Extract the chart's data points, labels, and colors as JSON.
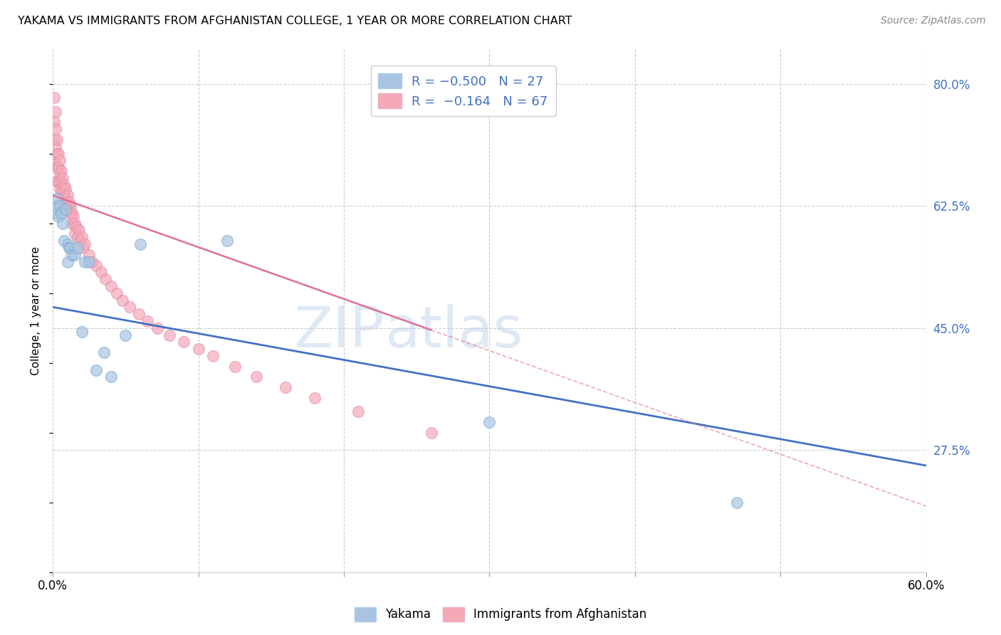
{
  "title": "YAKAMA VS IMMIGRANTS FROM AFGHANISTAN COLLEGE, 1 YEAR OR MORE CORRELATION CHART",
  "source": "Source: ZipAtlas.com",
  "ylabel": "College, 1 year or more",
  "xlim": [
    0.0,
    0.6
  ],
  "ylim": [
    0.1,
    0.85
  ],
  "xtick_positions": [
    0.0,
    0.1,
    0.2,
    0.3,
    0.4,
    0.5,
    0.6
  ],
  "xticklabels": [
    "0.0%",
    "",
    "",
    "",
    "",
    "",
    "60.0%"
  ],
  "yticks_right": [
    0.275,
    0.45,
    0.625,
    0.8
  ],
  "ytick_right_labels": [
    "27.5%",
    "45.0%",
    "62.5%",
    "80.0%"
  ],
  "grid_color": "#cccccc",
  "background_color": "#ffffff",
  "watermark_zip": "ZIP",
  "watermark_atlas": "atlas",
  "blue_color": "#a8c4e0",
  "pink_color": "#f4a8b8",
  "line_blue_color": "#4472c4",
  "line_pink_color": "#e07090",
  "legend_text_color": "#4472c4",
  "right_axis_color": "#4472c4",
  "yakama_x": [
    0.002,
    0.003,
    0.003,
    0.004,
    0.005,
    0.006,
    0.007,
    0.008,
    0.009,
    0.01,
    0.01,
    0.011,
    0.012,
    0.013,
    0.015,
    0.017,
    0.02,
    0.022,
    0.025,
    0.03,
    0.035,
    0.04,
    0.05,
    0.06,
    0.12,
    0.3,
    0.47
  ],
  "yakama_y": [
    0.625,
    0.635,
    0.615,
    0.61,
    0.625,
    0.615,
    0.6,
    0.575,
    0.62,
    0.57,
    0.545,
    0.565,
    0.565,
    0.555,
    0.555,
    0.565,
    0.445,
    0.545,
    0.545,
    0.39,
    0.415,
    0.38,
    0.44,
    0.57,
    0.575,
    0.315,
    0.2
  ],
  "afghan_x": [
    0.001,
    0.001,
    0.001,
    0.002,
    0.002,
    0.002,
    0.002,
    0.003,
    0.003,
    0.003,
    0.003,
    0.004,
    0.004,
    0.004,
    0.005,
    0.005,
    0.005,
    0.006,
    0.006,
    0.006,
    0.007,
    0.007,
    0.007,
    0.008,
    0.008,
    0.008,
    0.009,
    0.009,
    0.01,
    0.01,
    0.011,
    0.011,
    0.012,
    0.013,
    0.013,
    0.014,
    0.015,
    0.015,
    0.016,
    0.017,
    0.018,
    0.019,
    0.02,
    0.021,
    0.022,
    0.025,
    0.027,
    0.03,
    0.033,
    0.036,
    0.04,
    0.044,
    0.048,
    0.053,
    0.059,
    0.065,
    0.072,
    0.08,
    0.09,
    0.1,
    0.11,
    0.125,
    0.14,
    0.16,
    0.18,
    0.21,
    0.26
  ],
  "afghan_y": [
    0.78,
    0.745,
    0.72,
    0.76,
    0.735,
    0.71,
    0.685,
    0.72,
    0.7,
    0.68,
    0.66,
    0.7,
    0.68,
    0.66,
    0.69,
    0.67,
    0.65,
    0.675,
    0.66,
    0.645,
    0.665,
    0.65,
    0.635,
    0.655,
    0.64,
    0.625,
    0.65,
    0.635,
    0.64,
    0.625,
    0.63,
    0.615,
    0.625,
    0.615,
    0.6,
    0.61,
    0.6,
    0.585,
    0.595,
    0.58,
    0.59,
    0.575,
    0.58,
    0.565,
    0.57,
    0.555,
    0.545,
    0.54,
    0.53,
    0.52,
    0.51,
    0.5,
    0.49,
    0.48,
    0.47,
    0.46,
    0.45,
    0.44,
    0.43,
    0.42,
    0.41,
    0.395,
    0.38,
    0.365,
    0.35,
    0.33,
    0.3
  ],
  "blue_line_x0": 0.0,
  "blue_line_y0": 0.48,
  "blue_line_x1": 0.6,
  "blue_line_y1": 0.253,
  "pink_line_x0": 0.0,
  "pink_line_y0": 0.64,
  "pink_line_x1": 0.6,
  "pink_line_y1": 0.195
}
